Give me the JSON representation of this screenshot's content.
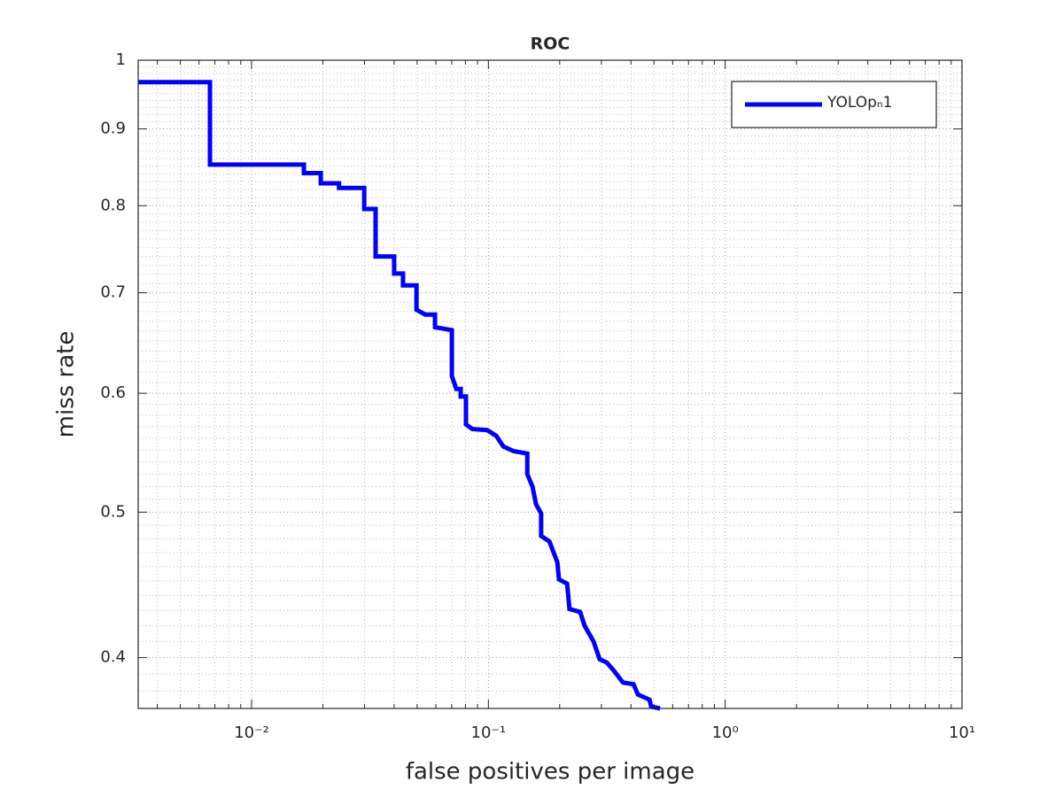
{
  "chart_data": {
    "type": "line",
    "title": "ROC",
    "x_label": "false positives per image",
    "y_label": "miss rate",
    "x": [
      0.00332,
      0.00667,
      0.00667,
      0.01663,
      0.01663,
      0.0196,
      0.0196,
      0.0234,
      0.0234,
      0.0299,
      0.0299,
      0.0334,
      0.0334,
      0.04,
      0.04,
      0.0436,
      0.0436,
      0.0497,
      0.0497,
      0.0541,
      0.0595,
      0.0595,
      0.0701,
      0.0701,
      0.0732,
      0.0764,
      0.0764,
      0.0804,
      0.0804,
      0.0855,
      0.0989,
      0.108,
      0.1156,
      0.128,
      0.146,
      0.146,
      0.1535,
      0.159,
      0.167,
      0.167,
      0.181,
      0.1955,
      0.1986,
      0.215,
      0.22,
      0.244,
      0.255,
      0.278,
      0.295,
      0.316,
      0.339,
      0.37,
      0.41,
      0.428,
      0.479,
      0.487,
      0.531
    ],
    "series": [
      {
        "name": "YOLOpₙ1",
        "color": "#0000ff",
        "values": [
          0.967,
          0.967,
          0.852,
          0.852,
          0.841,
          0.841,
          0.828,
          0.828,
          0.822,
          0.822,
          0.796,
          0.796,
          0.74,
          0.74,
          0.721,
          0.721,
          0.708,
          0.708,
          0.682,
          0.677,
          0.677,
          0.664,
          0.661,
          0.616,
          0.604,
          0.604,
          0.597,
          0.597,
          0.572,
          0.568,
          0.567,
          0.562,
          0.553,
          0.549,
          0.547,
          0.53,
          0.52,
          0.506,
          0.499,
          0.482,
          0.478,
          0.463,
          0.451,
          0.448,
          0.431,
          0.429,
          0.42,
          0.41,
          0.399,
          0.397,
          0.392,
          0.385,
          0.384,
          0.378,
          0.375,
          0.371,
          0.37
        ]
      }
    ],
    "xlim": [
      0.00332,
      10
    ],
    "ylim": [
      0.37,
      1
    ],
    "x_log": true,
    "y_log": true,
    "xticks": [
      {
        "value": 0.01,
        "label": "10⁻²"
      },
      {
        "value": 0.1,
        "label": "10⁻¹"
      },
      {
        "value": 1,
        "label": "10⁰"
      },
      {
        "value": 10,
        "label": "10¹"
      }
    ],
    "yticks": [
      0.4,
      0.5,
      0.6,
      0.7,
      0.8,
      0.9,
      1
    ],
    "grid": true,
    "minor_grid": true,
    "legend": "upper right"
  }
}
